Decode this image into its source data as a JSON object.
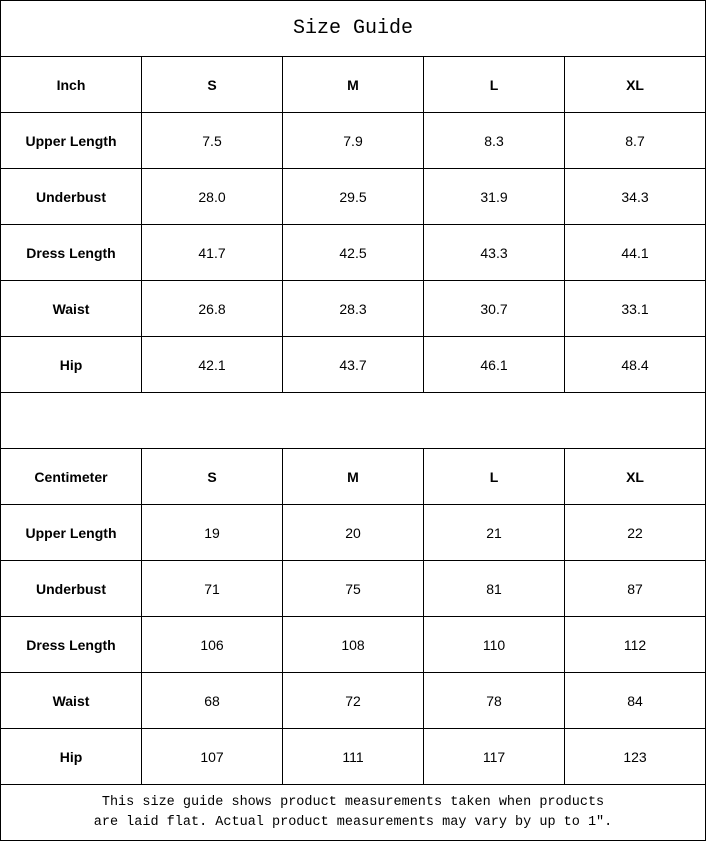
{
  "title": "Size Guide",
  "sizes": [
    "S",
    "M",
    "L",
    "XL"
  ],
  "tables": [
    {
      "unit": "Inch",
      "rows": [
        {
          "label": "Upper Length",
          "values": [
            "7.5",
            "7.9",
            "8.3",
            "8.7"
          ]
        },
        {
          "label": "Underbust",
          "values": [
            "28.0",
            "29.5",
            "31.9",
            "34.3"
          ]
        },
        {
          "label": "Dress Length",
          "values": [
            "41.7",
            "42.5",
            "43.3",
            "44.1"
          ]
        },
        {
          "label": "Waist",
          "values": [
            "26.8",
            "28.3",
            "30.7",
            "33.1"
          ]
        },
        {
          "label": "Hip",
          "values": [
            "42.1",
            "43.7",
            "46.1",
            "48.4"
          ]
        }
      ]
    },
    {
      "unit": "Centimeter",
      "rows": [
        {
          "label": "Upper Length",
          "values": [
            "19",
            "20",
            "21",
            "22"
          ]
        },
        {
          "label": "Underbust",
          "values": [
            "71",
            "75",
            "81",
            "87"
          ]
        },
        {
          "label": "Dress Length",
          "values": [
            "106",
            "108",
            "110",
            "112"
          ]
        },
        {
          "label": "Waist",
          "values": [
            "68",
            "72",
            "78",
            "84"
          ]
        },
        {
          "label": "Hip",
          "values": [
            "107",
            "111",
            "117",
            "123"
          ]
        }
      ]
    }
  ],
  "note": {
    "line1": "This size guide shows product measurements taken when products",
    "line2": "are laid flat. Actual product measurements may vary by up to 1″."
  }
}
